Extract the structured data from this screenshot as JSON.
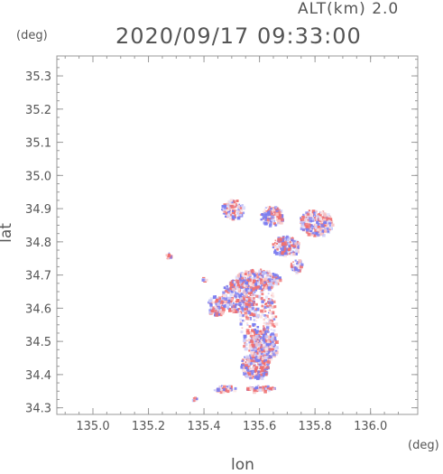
{
  "header": {
    "alt_label": "ALT(km) 2.0",
    "time_label": "2020/09/17 09:33:00"
  },
  "chart_data": {
    "type": "heatmap",
    "title": "2020/09/17 09:33:00",
    "subtitle": "ALT(km) 2.0",
    "xlabel": "lon",
    "ylabel": "lat",
    "xunit": "(deg)",
    "yunit": "(deg)",
    "xlim": [
      134.87,
      136.17
    ],
    "ylim": [
      34.28,
      35.36
    ],
    "xticks": [
      "135.0",
      "135.2",
      "135.4",
      "135.6",
      "135.8",
      "136.0"
    ],
    "yticks": [
      "34.3",
      "34.4",
      "34.5",
      "34.6",
      "34.7",
      "34.8",
      "34.9",
      "35.0",
      "35.1",
      "35.2",
      "35.3"
    ],
    "grid": false,
    "colors": {
      "positive": "#f07070",
      "negative": "#7a7cf0",
      "axis": "#999999",
      "text": "#555555"
    },
    "echo_regions": [
      {
        "lon": 135.59,
        "lat": 34.57,
        "dlon": 0.07,
        "dlat": 0.12
      },
      {
        "lon": 135.59,
        "lat": 34.69,
        "dlon": 0.08,
        "dlat": 0.03
      },
      {
        "lon": 135.52,
        "lat": 34.64,
        "dlon": 0.06,
        "dlat": 0.05
      },
      {
        "lon": 135.58,
        "lat": 34.43,
        "dlon": 0.05,
        "dlat": 0.04
      },
      {
        "lon": 135.61,
        "lat": 34.49,
        "dlon": 0.05,
        "dlat": 0.05
      },
      {
        "lon": 135.8,
        "lat": 34.86,
        "dlon": 0.06,
        "dlat": 0.04
      },
      {
        "lon": 135.69,
        "lat": 34.79,
        "dlon": 0.05,
        "dlat": 0.03
      },
      {
        "lon": 135.5,
        "lat": 34.9,
        "dlon": 0.04,
        "dlat": 0.03
      },
      {
        "lon": 135.64,
        "lat": 34.88,
        "dlon": 0.04,
        "dlat": 0.03
      },
      {
        "lon": 135.47,
        "lat": 34.36,
        "dlon": 0.04,
        "dlat": 0.01
      },
      {
        "lon": 135.6,
        "lat": 34.36,
        "dlon": 0.05,
        "dlat": 0.01
      },
      {
        "lon": 135.36,
        "lat": 34.33,
        "dlon": 0.01,
        "dlat": 0.005
      },
      {
        "lon": 135.27,
        "lat": 34.76,
        "dlon": 0.01,
        "dlat": 0.01
      },
      {
        "lon": 135.4,
        "lat": 34.69,
        "dlon": 0.01,
        "dlat": 0.01
      },
      {
        "lon": 135.73,
        "lat": 34.73,
        "dlon": 0.02,
        "dlat": 0.02
      },
      {
        "lon": 135.44,
        "lat": 34.61,
        "dlon": 0.03,
        "dlat": 0.03
      }
    ]
  }
}
